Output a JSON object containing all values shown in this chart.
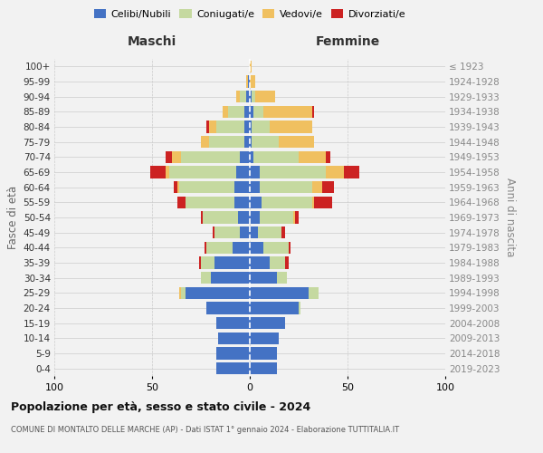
{
  "age_groups": [
    "0-4",
    "5-9",
    "10-14",
    "15-19",
    "20-24",
    "25-29",
    "30-34",
    "35-39",
    "40-44",
    "45-49",
    "50-54",
    "55-59",
    "60-64",
    "65-69",
    "70-74",
    "75-79",
    "80-84",
    "85-89",
    "90-94",
    "95-99",
    "100+"
  ],
  "birth_years": [
    "2019-2023",
    "2014-2018",
    "2009-2013",
    "2004-2008",
    "1999-2003",
    "1994-1998",
    "1989-1993",
    "1984-1988",
    "1979-1983",
    "1974-1978",
    "1969-1973",
    "1964-1968",
    "1959-1963",
    "1954-1958",
    "1949-1953",
    "1944-1948",
    "1939-1943",
    "1934-1938",
    "1929-1933",
    "1924-1928",
    "≤ 1923"
  ],
  "maschi": {
    "celibi": [
      17,
      17,
      16,
      17,
      22,
      33,
      20,
      18,
      9,
      5,
      6,
      8,
      8,
      7,
      5,
      3,
      3,
      3,
      2,
      1,
      0
    ],
    "coniugati": [
      0,
      0,
      0,
      0,
      0,
      2,
      5,
      7,
      13,
      13,
      18,
      25,
      28,
      34,
      30,
      18,
      14,
      8,
      3,
      0,
      0
    ],
    "vedovi": [
      0,
      0,
      0,
      0,
      0,
      1,
      0,
      0,
      0,
      0,
      0,
      0,
      1,
      2,
      5,
      4,
      4,
      3,
      2,
      1,
      0
    ],
    "divorziati": [
      0,
      0,
      0,
      0,
      0,
      0,
      0,
      1,
      1,
      1,
      1,
      4,
      2,
      8,
      3,
      0,
      1,
      0,
      0,
      0,
      0
    ]
  },
  "femmine": {
    "nubili": [
      14,
      14,
      15,
      18,
      25,
      30,
      14,
      10,
      7,
      4,
      5,
      6,
      5,
      5,
      2,
      1,
      1,
      2,
      1,
      0,
      0
    ],
    "coniugate": [
      0,
      0,
      0,
      0,
      1,
      5,
      5,
      8,
      13,
      12,
      17,
      26,
      27,
      34,
      23,
      14,
      9,
      5,
      2,
      0,
      0
    ],
    "vedove": [
      0,
      0,
      0,
      0,
      0,
      0,
      0,
      0,
      0,
      0,
      1,
      1,
      5,
      9,
      14,
      18,
      22,
      25,
      10,
      3,
      1
    ],
    "divorziate": [
      0,
      0,
      0,
      0,
      0,
      0,
      0,
      2,
      1,
      2,
      2,
      9,
      6,
      8,
      2,
      0,
      0,
      1,
      0,
      0,
      0
    ]
  },
  "colors": {
    "celibi_nubili": "#4472c4",
    "coniugati": "#c5d9a0",
    "vedovi": "#f0c060",
    "divorziati": "#cc2222"
  },
  "xlim": 100,
  "title": "Popolazione per età, sesso e stato civile - 2024",
  "subtitle": "COMUNE DI MONTALTO DELLE MARCHE (AP) - Dati ISTAT 1° gennaio 2024 - Elaborazione TUTTITALIA.IT",
  "ylabel_left": "Fasce di età",
  "ylabel_right": "Anni di nascita",
  "xlabel_left": "Maschi",
  "xlabel_right": "Femmine",
  "bg_color": "#f2f2f2",
  "grid_color": "#cccccc"
}
